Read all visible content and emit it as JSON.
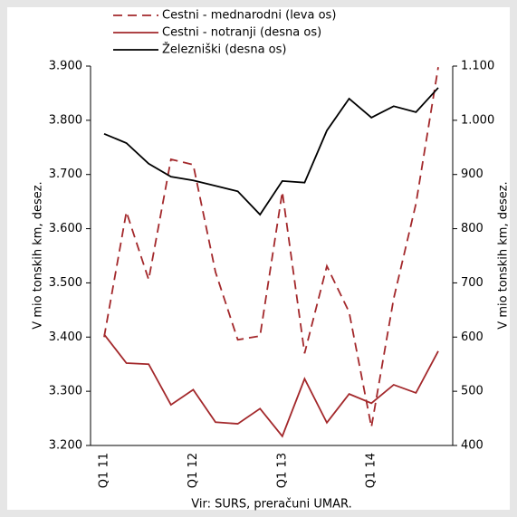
{
  "chart_data": {
    "type": "line",
    "y_label": "V mio tonskih km, desez.",
    "y2_label": "V mio tonskih km, desez.",
    "source": "Vir: SURS, preračuni UMAR.",
    "categories": [
      "Q1 11",
      null,
      null,
      null,
      "Q1 12",
      null,
      null,
      null,
      "Q1 13",
      null,
      null,
      null,
      "Q1 14",
      null,
      null,
      null
    ],
    "ylim": [
      3200,
      3900
    ],
    "yticks": [
      {
        "value": 3200,
        "label": "3.200"
      },
      {
        "value": 3300,
        "label": "3.300"
      },
      {
        "value": 3400,
        "label": "3.400"
      },
      {
        "value": 3500,
        "label": "3.500"
      },
      {
        "value": 3600,
        "label": "3.600"
      },
      {
        "value": 3700,
        "label": "3.700"
      },
      {
        "value": 3800,
        "label": "3.800"
      },
      {
        "value": 3900,
        "label": "3.900"
      }
    ],
    "y2lim": [
      400,
      1100
    ],
    "y2ticks": [
      400,
      500,
      600,
      700,
      800,
      900,
      {
        "value": 1000,
        "label": "1.000"
      },
      {
        "value": 1100,
        "label": "1.100"
      }
    ],
    "series": [
      {
        "name": "Cestni - mednarodni (leva os)",
        "color": "#a3282b",
        "dashed": true,
        "axis": "y",
        "values": [
          3400,
          3631,
          3506,
          3728,
          3718,
          3520,
          3395,
          3402,
          3668,
          3370,
          3531,
          3446,
          3234,
          3471,
          3646,
          3898
        ]
      },
      {
        "name": "Cestni - notranji (desna os)",
        "color": "#a3282b",
        "axis": "y2",
        "values": [
          605,
          552,
          550,
          475,
          503,
          443,
          440,
          468,
          417,
          523,
          442,
          495,
          478,
          512,
          497,
          574
        ]
      },
      {
        "name": "Železniški (desna os)",
        "color": "#000000",
        "axis": "y2",
        "values": [
          975,
          958,
          920,
          896,
          889,
          879,
          869,
          826,
          888,
          885,
          981,
          1040,
          1005,
          1026,
          1015,
          1060
        ]
      }
    ]
  }
}
